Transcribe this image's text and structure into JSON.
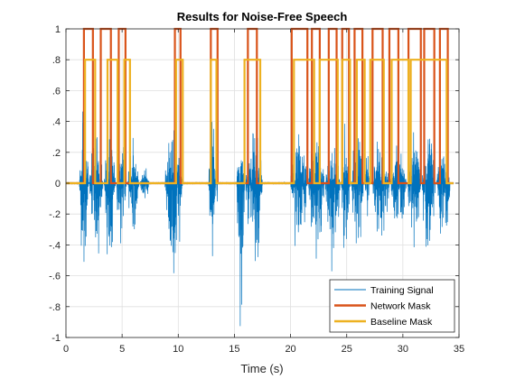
{
  "chart_data": {
    "type": "line",
    "title": "Results for Noise-Free Speech",
    "xlabel": "Time (s)",
    "ylabel": "",
    "xlim": [
      0,
      35
    ],
    "ylim": [
      -1,
      1
    ],
    "xticks": [
      0,
      5,
      10,
      15,
      20,
      25,
      30,
      35
    ],
    "yticks": [
      -1,
      -0.8,
      -0.6,
      -0.4,
      -0.2,
      0,
      0.2,
      0.4,
      0.6,
      0.8,
      1
    ],
    "grid": true,
    "legend_position": "bottom-right",
    "series": [
      {
        "name": "Training Signal",
        "color": "#0072BD",
        "kind": "waveform",
        "bursts": [
          [
            1.2,
            2.0,
            0.62,
            -0.67
          ],
          [
            2.1,
            3.3,
            0.45,
            -0.57
          ],
          [
            3.4,
            4.4,
            0.43,
            -0.6
          ],
          [
            4.5,
            5.4,
            0.39,
            -0.6
          ],
          [
            5.5,
            6.5,
            0.32,
            -0.42
          ],
          [
            6.6,
            7.4,
            0.12,
            -0.18
          ],
          [
            8.8,
            10.4,
            0.48,
            -0.77
          ],
          [
            12.7,
            13.5,
            0.5,
            -0.78
          ],
          [
            15.2,
            15.9,
            0.3,
            -0.97
          ],
          [
            16.0,
            17.5,
            0.43,
            -0.65
          ],
          [
            20.0,
            21.5,
            0.42,
            -0.55
          ],
          [
            21.6,
            23.0,
            0.43,
            -0.55
          ],
          [
            23.1,
            24.4,
            0.38,
            -0.62
          ],
          [
            24.5,
            25.3,
            0.45,
            -0.6
          ],
          [
            25.4,
            26.5,
            0.42,
            -0.55
          ],
          [
            26.6,
            27.0,
            0.28,
            -0.3
          ],
          [
            27.3,
            28.8,
            0.36,
            -0.58
          ],
          [
            28.9,
            30.3,
            0.3,
            -0.45
          ],
          [
            30.4,
            31.6,
            0.4,
            -0.5
          ],
          [
            31.7,
            32.9,
            0.42,
            -0.61
          ],
          [
            33.0,
            34.2,
            0.3,
            -0.55
          ]
        ]
      },
      {
        "name": "Network Mask",
        "color": "#D95319",
        "value": 1,
        "segments": [
          [
            1.6,
            2.4
          ],
          [
            3.1,
            4.0
          ],
          [
            4.7,
            5.3
          ],
          [
            9.7,
            10.2
          ],
          [
            12.9,
            13.5
          ],
          [
            16.2,
            17.0
          ],
          [
            20.1,
            21.5
          ],
          [
            21.9,
            22.6
          ],
          [
            23.4,
            24.1
          ],
          [
            24.6,
            25.2
          ],
          [
            25.7,
            26.4
          ],
          [
            27.3,
            28.2
          ],
          [
            28.8,
            29.6
          ],
          [
            30.5,
            31.6
          ],
          [
            31.9,
            32.8
          ],
          [
            33.3,
            34.0
          ]
        ]
      },
      {
        "name": "Baseline Mask",
        "color": "#EDB120",
        "value": 0.8,
        "segments": [
          [
            1.7,
            2.6
          ],
          [
            3.7,
            4.6
          ],
          [
            5.2,
            5.7
          ],
          [
            9.8,
            10.4
          ],
          [
            12.9,
            13.4
          ],
          [
            15.9,
            17.3
          ],
          [
            20.3,
            22.1
          ],
          [
            22.6,
            24.2
          ],
          [
            24.6,
            25.3
          ],
          [
            25.9,
            26.6
          ],
          [
            27.1,
            28.3
          ],
          [
            29.0,
            30.5
          ],
          [
            30.7,
            33.9
          ]
        ]
      }
    ]
  }
}
